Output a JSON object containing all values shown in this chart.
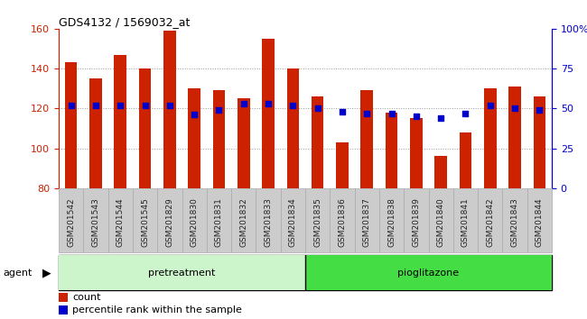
{
  "title": "GDS4132 / 1569032_at",
  "samples": [
    "GSM201542",
    "GSM201543",
    "GSM201544",
    "GSM201545",
    "GSM201829",
    "GSM201830",
    "GSM201831",
    "GSM201832",
    "GSM201833",
    "GSM201834",
    "GSM201835",
    "GSM201836",
    "GSM201837",
    "GSM201838",
    "GSM201839",
    "GSM201840",
    "GSM201841",
    "GSM201842",
    "GSM201843",
    "GSM201844"
  ],
  "counts": [
    143,
    135,
    147,
    140,
    159,
    130,
    129,
    125,
    155,
    140,
    126,
    103,
    129,
    118,
    115,
    96,
    108,
    130,
    131,
    126
  ],
  "percentiles": [
    52,
    52,
    52,
    52,
    52,
    46,
    49,
    53,
    53,
    52,
    50,
    48,
    47,
    47,
    45,
    44,
    47,
    52,
    50,
    49
  ],
  "ylim_left": [
    80,
    160
  ],
  "ylim_right": [
    0,
    100
  ],
  "bar_color": "#cc2200",
  "dot_color": "#0000cc",
  "pretreatment_color": "#ccf5cc",
  "pioglitazone_color": "#44dd44",
  "pretreatment_samples": 10,
  "pioglitazone_samples": 10,
  "left_tick_color": "#cc2200",
  "right_tick_color": "#0000cc",
  "agent_label": "agent",
  "pretreatment_label": "pretreatment",
  "pioglitazone_label": "pioglitazone",
  "legend_count": "count",
  "legend_percentile": "percentile rank within the sample",
  "bar_width": 0.5,
  "tick_label_bg": "#cccccc",
  "plot_bg": "#ffffff",
  "fig_bg": "#ffffff"
}
